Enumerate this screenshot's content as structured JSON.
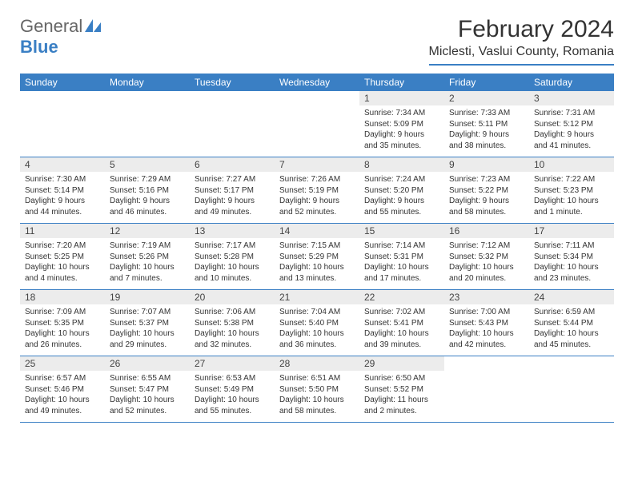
{
  "logo": {
    "part1": "General",
    "part2": "Blue"
  },
  "title": "February 2024",
  "location": "Miclesti, Vaslui County, Romania",
  "colors": {
    "accent": "#3a7fc4",
    "header_bg": "#3a7fc4",
    "daynum_bg": "#ececec"
  },
  "weekdays": [
    "Sunday",
    "Monday",
    "Tuesday",
    "Wednesday",
    "Thursday",
    "Friday",
    "Saturday"
  ],
  "first_day_index": 4,
  "days": [
    {
      "n": "1",
      "sunrise": "7:34 AM",
      "sunset": "5:09 PM",
      "daylight": "9 hours and 35 minutes."
    },
    {
      "n": "2",
      "sunrise": "7:33 AM",
      "sunset": "5:11 PM",
      "daylight": "9 hours and 38 minutes."
    },
    {
      "n": "3",
      "sunrise": "7:31 AM",
      "sunset": "5:12 PM",
      "daylight": "9 hours and 41 minutes."
    },
    {
      "n": "4",
      "sunrise": "7:30 AM",
      "sunset": "5:14 PM",
      "daylight": "9 hours and 44 minutes."
    },
    {
      "n": "5",
      "sunrise": "7:29 AM",
      "sunset": "5:16 PM",
      "daylight": "9 hours and 46 minutes."
    },
    {
      "n": "6",
      "sunrise": "7:27 AM",
      "sunset": "5:17 PM",
      "daylight": "9 hours and 49 minutes."
    },
    {
      "n": "7",
      "sunrise": "7:26 AM",
      "sunset": "5:19 PM",
      "daylight": "9 hours and 52 minutes."
    },
    {
      "n": "8",
      "sunrise": "7:24 AM",
      "sunset": "5:20 PM",
      "daylight": "9 hours and 55 minutes."
    },
    {
      "n": "9",
      "sunrise": "7:23 AM",
      "sunset": "5:22 PM",
      "daylight": "9 hours and 58 minutes."
    },
    {
      "n": "10",
      "sunrise": "7:22 AM",
      "sunset": "5:23 PM",
      "daylight": "10 hours and 1 minute."
    },
    {
      "n": "11",
      "sunrise": "7:20 AM",
      "sunset": "5:25 PM",
      "daylight": "10 hours and 4 minutes."
    },
    {
      "n": "12",
      "sunrise": "7:19 AM",
      "sunset": "5:26 PM",
      "daylight": "10 hours and 7 minutes."
    },
    {
      "n": "13",
      "sunrise": "7:17 AM",
      "sunset": "5:28 PM",
      "daylight": "10 hours and 10 minutes."
    },
    {
      "n": "14",
      "sunrise": "7:15 AM",
      "sunset": "5:29 PM",
      "daylight": "10 hours and 13 minutes."
    },
    {
      "n": "15",
      "sunrise": "7:14 AM",
      "sunset": "5:31 PM",
      "daylight": "10 hours and 17 minutes."
    },
    {
      "n": "16",
      "sunrise": "7:12 AM",
      "sunset": "5:32 PM",
      "daylight": "10 hours and 20 minutes."
    },
    {
      "n": "17",
      "sunrise": "7:11 AM",
      "sunset": "5:34 PM",
      "daylight": "10 hours and 23 minutes."
    },
    {
      "n": "18",
      "sunrise": "7:09 AM",
      "sunset": "5:35 PM",
      "daylight": "10 hours and 26 minutes."
    },
    {
      "n": "19",
      "sunrise": "7:07 AM",
      "sunset": "5:37 PM",
      "daylight": "10 hours and 29 minutes."
    },
    {
      "n": "20",
      "sunrise": "7:06 AM",
      "sunset": "5:38 PM",
      "daylight": "10 hours and 32 minutes."
    },
    {
      "n": "21",
      "sunrise": "7:04 AM",
      "sunset": "5:40 PM",
      "daylight": "10 hours and 36 minutes."
    },
    {
      "n": "22",
      "sunrise": "7:02 AM",
      "sunset": "5:41 PM",
      "daylight": "10 hours and 39 minutes."
    },
    {
      "n": "23",
      "sunrise": "7:00 AM",
      "sunset": "5:43 PM",
      "daylight": "10 hours and 42 minutes."
    },
    {
      "n": "24",
      "sunrise": "6:59 AM",
      "sunset": "5:44 PM",
      "daylight": "10 hours and 45 minutes."
    },
    {
      "n": "25",
      "sunrise": "6:57 AM",
      "sunset": "5:46 PM",
      "daylight": "10 hours and 49 minutes."
    },
    {
      "n": "26",
      "sunrise": "6:55 AM",
      "sunset": "5:47 PM",
      "daylight": "10 hours and 52 minutes."
    },
    {
      "n": "27",
      "sunrise": "6:53 AM",
      "sunset": "5:49 PM",
      "daylight": "10 hours and 55 minutes."
    },
    {
      "n": "28",
      "sunrise": "6:51 AM",
      "sunset": "5:50 PM",
      "daylight": "10 hours and 58 minutes."
    },
    {
      "n": "29",
      "sunrise": "6:50 AM",
      "sunset": "5:52 PM",
      "daylight": "11 hours and 2 minutes."
    }
  ],
  "labels": {
    "sunrise": "Sunrise: ",
    "sunset": "Sunset: ",
    "daylight": "Daylight: "
  }
}
